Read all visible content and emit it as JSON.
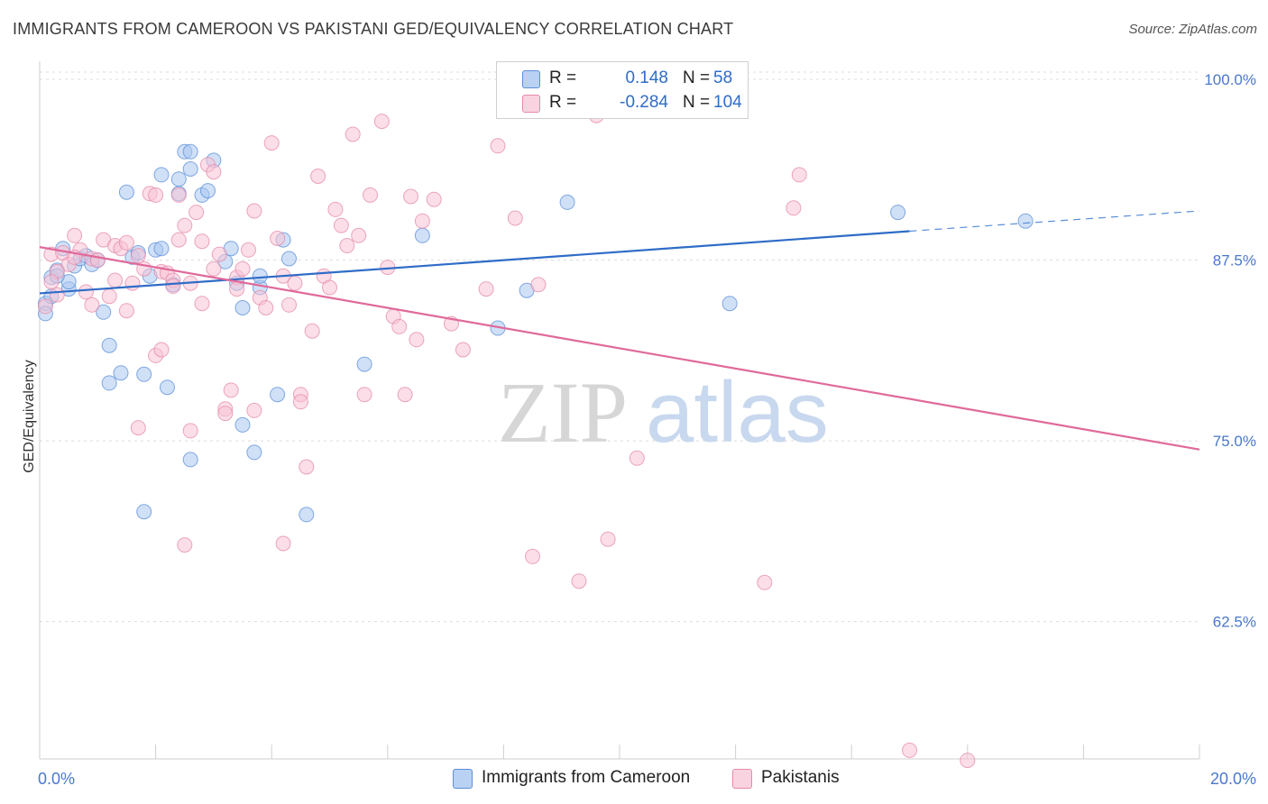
{
  "header": {
    "title": "IMMIGRANTS FROM CAMEROON VS PAKISTANI GED/EQUIVALENCY CORRELATION CHART",
    "source": "Source: ZipAtlas.com"
  },
  "watermark": {
    "zip": "ZIP",
    "atlas": "atlas"
  },
  "legend": {
    "r_label": "R =",
    "n_label": "N =",
    "rows": [
      {
        "r": "0.148",
        "n": "58",
        "color": "#a9c6f0",
        "border": "#5b8fd8"
      },
      {
        "r": "-0.284",
        "n": "104",
        "color": "#f7c3d5",
        "border": "#e48aa9"
      }
    ]
  },
  "bottom_legend": [
    {
      "label": "Immigrants from Cameroon",
      "color": "#b9d1f3",
      "border": "#5b8fd8"
    },
    {
      "label": "Pakistanis",
      "color": "#f9d3e0",
      "border": "#e48aa9"
    }
  ],
  "chart_data": {
    "type": "scatter",
    "title": "IMMIGRANTS FROM CAMEROON VS PAKISTANI GED/EQUIVALENCY CORRELATION CHART",
    "xlabel": "",
    "ylabel": "GED/Equivalency",
    "xlim": [
      0,
      20
    ],
    "ylim": [
      53,
      101
    ],
    "x_tick_labels": [
      "0.0%",
      "20.0%"
    ],
    "y_ticks": [
      62.5,
      75.0,
      87.5,
      100.0
    ],
    "y_tick_labels": [
      "62.5%",
      "75.0%",
      "87.5%",
      "100.0%"
    ],
    "grid": "horizontal dashed",
    "legend_position": "top-center",
    "series": [
      {
        "name": "Immigrants from Cameroon",
        "color": "#5b8fd8",
        "fill": "#a9c6f0",
        "trend": {
          "x1": 0,
          "y1": 85.2,
          "x2": 15,
          "y2": 89.5,
          "dash_to_x": 20,
          "dash_to_y": 90.9
        },
        "points": [
          [
            0.1,
            84.5
          ],
          [
            0.1,
            83.8
          ],
          [
            0.2,
            85.0
          ],
          [
            0.2,
            86.3
          ],
          [
            0.3,
            86.8
          ],
          [
            0.4,
            88.3
          ],
          [
            0.5,
            85.5
          ],
          [
            0.5,
            86.0
          ],
          [
            0.6,
            87.1
          ],
          [
            0.7,
            87.6
          ],
          [
            0.8,
            87.8
          ],
          [
            0.9,
            87.2
          ],
          [
            1.0,
            87.5
          ],
          [
            1.1,
            83.9
          ],
          [
            1.2,
            79.0
          ],
          [
            1.4,
            79.7
          ],
          [
            1.5,
            92.2
          ],
          [
            1.6,
            87.7
          ],
          [
            1.7,
            88.0
          ],
          [
            1.8,
            79.6
          ],
          [
            1.8,
            70.1
          ],
          [
            1.9,
            86.4
          ],
          [
            2.0,
            88.2
          ],
          [
            2.1,
            93.4
          ],
          [
            2.1,
            88.3
          ],
          [
            2.2,
            78.7
          ],
          [
            2.3,
            85.8
          ],
          [
            2.4,
            93.1
          ],
          [
            2.4,
            92.1
          ],
          [
            2.5,
            95.0
          ],
          [
            2.6,
            73.7
          ],
          [
            2.6,
            93.8
          ],
          [
            2.6,
            95.0
          ],
          [
            2.8,
            92.0
          ],
          [
            2.9,
            92.3
          ],
          [
            3.0,
            94.4
          ],
          [
            3.2,
            87.4
          ],
          [
            3.3,
            88.3
          ],
          [
            3.4,
            85.9
          ],
          [
            3.5,
            76.1
          ],
          [
            3.5,
            84.2
          ],
          [
            3.7,
            74.2
          ],
          [
            3.8,
            85.6
          ],
          [
            3.8,
            86.4
          ],
          [
            4.1,
            78.2
          ],
          [
            4.2,
            88.9
          ],
          [
            4.3,
            87.6
          ],
          [
            4.6,
            69.9
          ],
          [
            5.6,
            80.3
          ],
          [
            6.6,
            89.2
          ],
          [
            7.9,
            82.8
          ],
          [
            8.4,
            85.4
          ],
          [
            9.1,
            91.5
          ],
          [
            11.9,
            84.5
          ],
          [
            14.8,
            90.8
          ],
          [
            17.0,
            90.2
          ],
          [
            1.2,
            81.6
          ],
          [
            0.3,
            86.4
          ]
        ]
      },
      {
        "name": "Pakistanis",
        "color": "#e48aa9",
        "fill": "#f7c3d5",
        "trend": {
          "x1": 0,
          "y1": 88.4,
          "x2": 20,
          "y2": 74.4
        },
        "points": [
          [
            0.1,
            84.3
          ],
          [
            0.2,
            87.9
          ],
          [
            0.3,
            85.1
          ],
          [
            0.3,
            86.7
          ],
          [
            0.4,
            88.0
          ],
          [
            0.5,
            87.2
          ],
          [
            0.6,
            89.2
          ],
          [
            0.7,
            88.2
          ],
          [
            0.8,
            85.3
          ],
          [
            0.9,
            87.6
          ],
          [
            0.9,
            84.4
          ],
          [
            1.0,
            87.5
          ],
          [
            1.1,
            88.9
          ],
          [
            1.2,
            85.0
          ],
          [
            1.3,
            86.1
          ],
          [
            1.3,
            88.5
          ],
          [
            1.4,
            88.3
          ],
          [
            1.5,
            88.7
          ],
          [
            1.6,
            85.9
          ],
          [
            1.7,
            87.8
          ],
          [
            1.7,
            75.9
          ],
          [
            1.8,
            86.9
          ],
          [
            1.9,
            92.1
          ],
          [
            2.0,
            92.0
          ],
          [
            2.0,
            80.9
          ],
          [
            2.1,
            81.3
          ],
          [
            2.1,
            86.7
          ],
          [
            2.2,
            86.6
          ],
          [
            2.3,
            86.1
          ],
          [
            2.3,
            85.7
          ],
          [
            2.4,
            92.0
          ],
          [
            2.4,
            88.9
          ],
          [
            2.5,
            89.9
          ],
          [
            2.5,
            67.8
          ],
          [
            2.6,
            85.9
          ],
          [
            2.6,
            75.7
          ],
          [
            2.7,
            90.8
          ],
          [
            2.8,
            88.8
          ],
          [
            2.9,
            94.1
          ],
          [
            3.0,
            93.6
          ],
          [
            3.0,
            86.9
          ],
          [
            3.1,
            87.9
          ],
          [
            3.2,
            77.2
          ],
          [
            3.3,
            78.5
          ],
          [
            3.4,
            86.3
          ],
          [
            3.4,
            85.5
          ],
          [
            3.5,
            86.9
          ],
          [
            3.6,
            88.2
          ],
          [
            3.7,
            90.9
          ],
          [
            3.8,
            84.9
          ],
          [
            3.9,
            84.2
          ],
          [
            4.0,
            95.6
          ],
          [
            4.1,
            89.0
          ],
          [
            4.2,
            86.4
          ],
          [
            4.2,
            67.9
          ],
          [
            4.3,
            84.4
          ],
          [
            4.4,
            85.9
          ],
          [
            4.5,
            78.2
          ],
          [
            4.5,
            77.7
          ],
          [
            4.6,
            73.2
          ],
          [
            4.7,
            82.6
          ],
          [
            4.8,
            93.3
          ],
          [
            4.9,
            86.4
          ],
          [
            5.0,
            85.6
          ],
          [
            5.1,
            91.0
          ],
          [
            5.2,
            89.9
          ],
          [
            5.3,
            88.5
          ],
          [
            5.4,
            96.2
          ],
          [
            5.5,
            89.2
          ],
          [
            5.6,
            78.2
          ],
          [
            5.7,
            92.0
          ],
          [
            5.9,
            97.1
          ],
          [
            6.0,
            87.0
          ],
          [
            6.1,
            83.6
          ],
          [
            6.2,
            82.9
          ],
          [
            6.3,
            78.2
          ],
          [
            6.4,
            91.9
          ],
          [
            6.5,
            82.0
          ],
          [
            6.8,
            91.7
          ],
          [
            7.1,
            83.1
          ],
          [
            7.3,
            81.3
          ],
          [
            7.9,
            95.4
          ],
          [
            8.2,
            90.4
          ],
          [
            8.5,
            67.0
          ],
          [
            8.6,
            85.8
          ],
          [
            9.3,
            65.3
          ],
          [
            9.6,
            97.5
          ],
          [
            9.8,
            68.2
          ],
          [
            10.3,
            73.8
          ],
          [
            10.3,
            100.0
          ],
          [
            11.4,
            100.0
          ],
          [
            12.5,
            65.2
          ],
          [
            13.0,
            91.1
          ],
          [
            13.1,
            93.4
          ],
          [
            15.0,
            53.6
          ],
          [
            16.0,
            52.9
          ],
          [
            6.6,
            90.2
          ],
          [
            7.7,
            85.5
          ],
          [
            3.2,
            76.9
          ],
          [
            2.8,
            84.5
          ],
          [
            0.2,
            86.0
          ],
          [
            1.5,
            84.0
          ],
          [
            3.7,
            77.1
          ],
          [
            0.6,
            87.7
          ]
        ]
      }
    ]
  }
}
